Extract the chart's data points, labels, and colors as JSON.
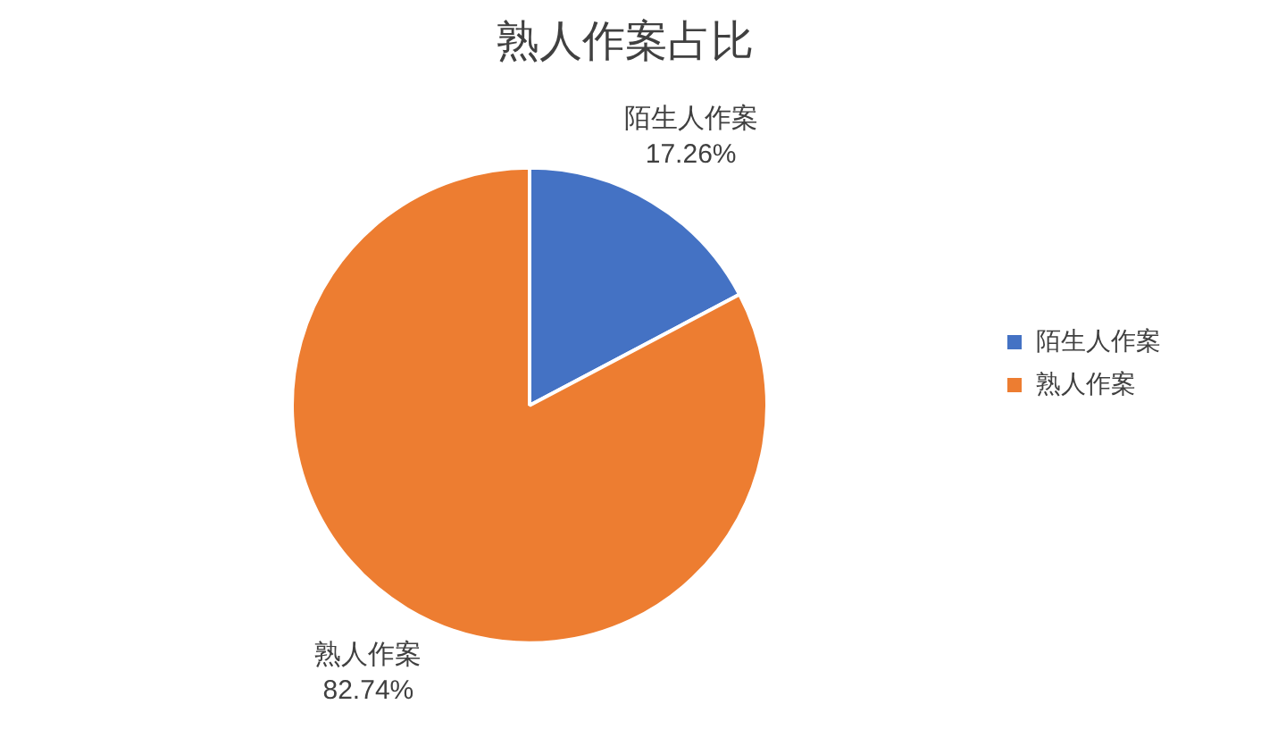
{
  "chart_data": {
    "type": "pie",
    "title": "熟人作案占比",
    "categories": [
      "陌生人作案",
      "熟人作案"
    ],
    "values": [
      17.26,
      82.74
    ],
    "colors": [
      "#4472c4",
      "#ed7d31"
    ],
    "value_labels": [
      "17.26%",
      "82.74%"
    ],
    "legend": "right"
  }
}
